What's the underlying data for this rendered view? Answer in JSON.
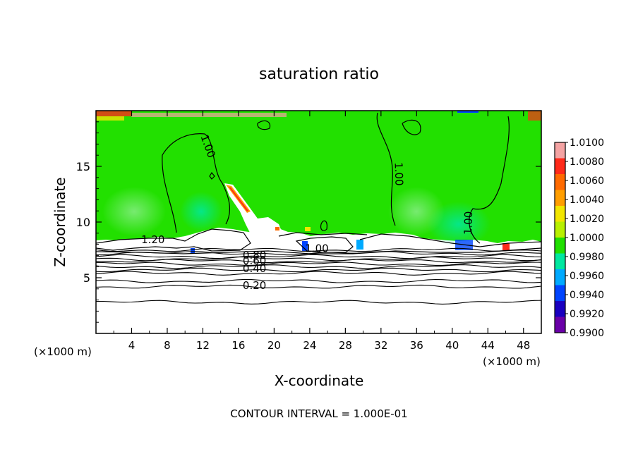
{
  "chart_data": {
    "type": "heatmap",
    "title": "saturation ratio",
    "xlabel": "X-coordinate",
    "ylabel": "Z-coordinate",
    "x_unit_left": "(×1000 m)",
    "x_unit_right": "(×1000 m)",
    "footer": "CONTOUR INTERVAL = 1.000E-01",
    "xlim": [
      0,
      50
    ],
    "ylim": [
      0,
      20
    ],
    "x_ticks": [
      4,
      8,
      12,
      16,
      20,
      24,
      28,
      32,
      36,
      40,
      44,
      48
    ],
    "y_ticks": [
      5,
      10,
      15
    ],
    "colorbar": {
      "levels": [
        "1.0100",
        "1.0080",
        "1.0060",
        "1.0040",
        "1.0020",
        "1.0000",
        "0.9980",
        "0.9960",
        "0.9940",
        "0.9920",
        "0.9900"
      ],
      "colors": [
        "#f4a3a3",
        "#ff2a1a",
        "#ff6a00",
        "#ff9e00",
        "#f2e600",
        "#b8f000",
        "#20e000",
        "#00e8a0",
        "#00aaff",
        "#0044ff",
        "#1a00c0",
        "#6a00a8"
      ]
    },
    "contour_labels": [
      {
        "text": "1.00",
        "x": 12.2,
        "y": 16.7,
        "rot": 70
      },
      {
        "text": "1.00",
        "x": 33.6,
        "y": 14.3,
        "rot": 88
      },
      {
        "text": "1.00",
        "x": 42.2,
        "y": 9.9,
        "rot": 272
      },
      {
        "text": "1.20",
        "x": 6.4,
        "y": 8.1,
        "rot": 0
      },
      {
        "text": "1.00",
        "x": 24.8,
        "y": 7.3,
        "rot": 0
      },
      {
        "text": "0.80",
        "x": 17.8,
        "y": 6.7,
        "rot": 0
      },
      {
        "text": "0.60",
        "x": 17.8,
        "y": 6.2,
        "rot": 0
      },
      {
        "text": "0.40",
        "x": 17.8,
        "y": 5.5,
        "rot": 0
      },
      {
        "text": "0.20",
        "x": 17.8,
        "y": 4.0,
        "rot": 0
      }
    ],
    "stratified_contours_z": [
      7.5,
      7.2,
      6.9,
      6.7,
      6.5,
      6.25,
      6.0,
      5.7,
      5.4,
      4.7,
      4.2,
      2.8
    ],
    "colors": {
      "field_green": "#22e000",
      "unsaturated_white": "#ffffff",
      "contour": "#000000"
    }
  }
}
